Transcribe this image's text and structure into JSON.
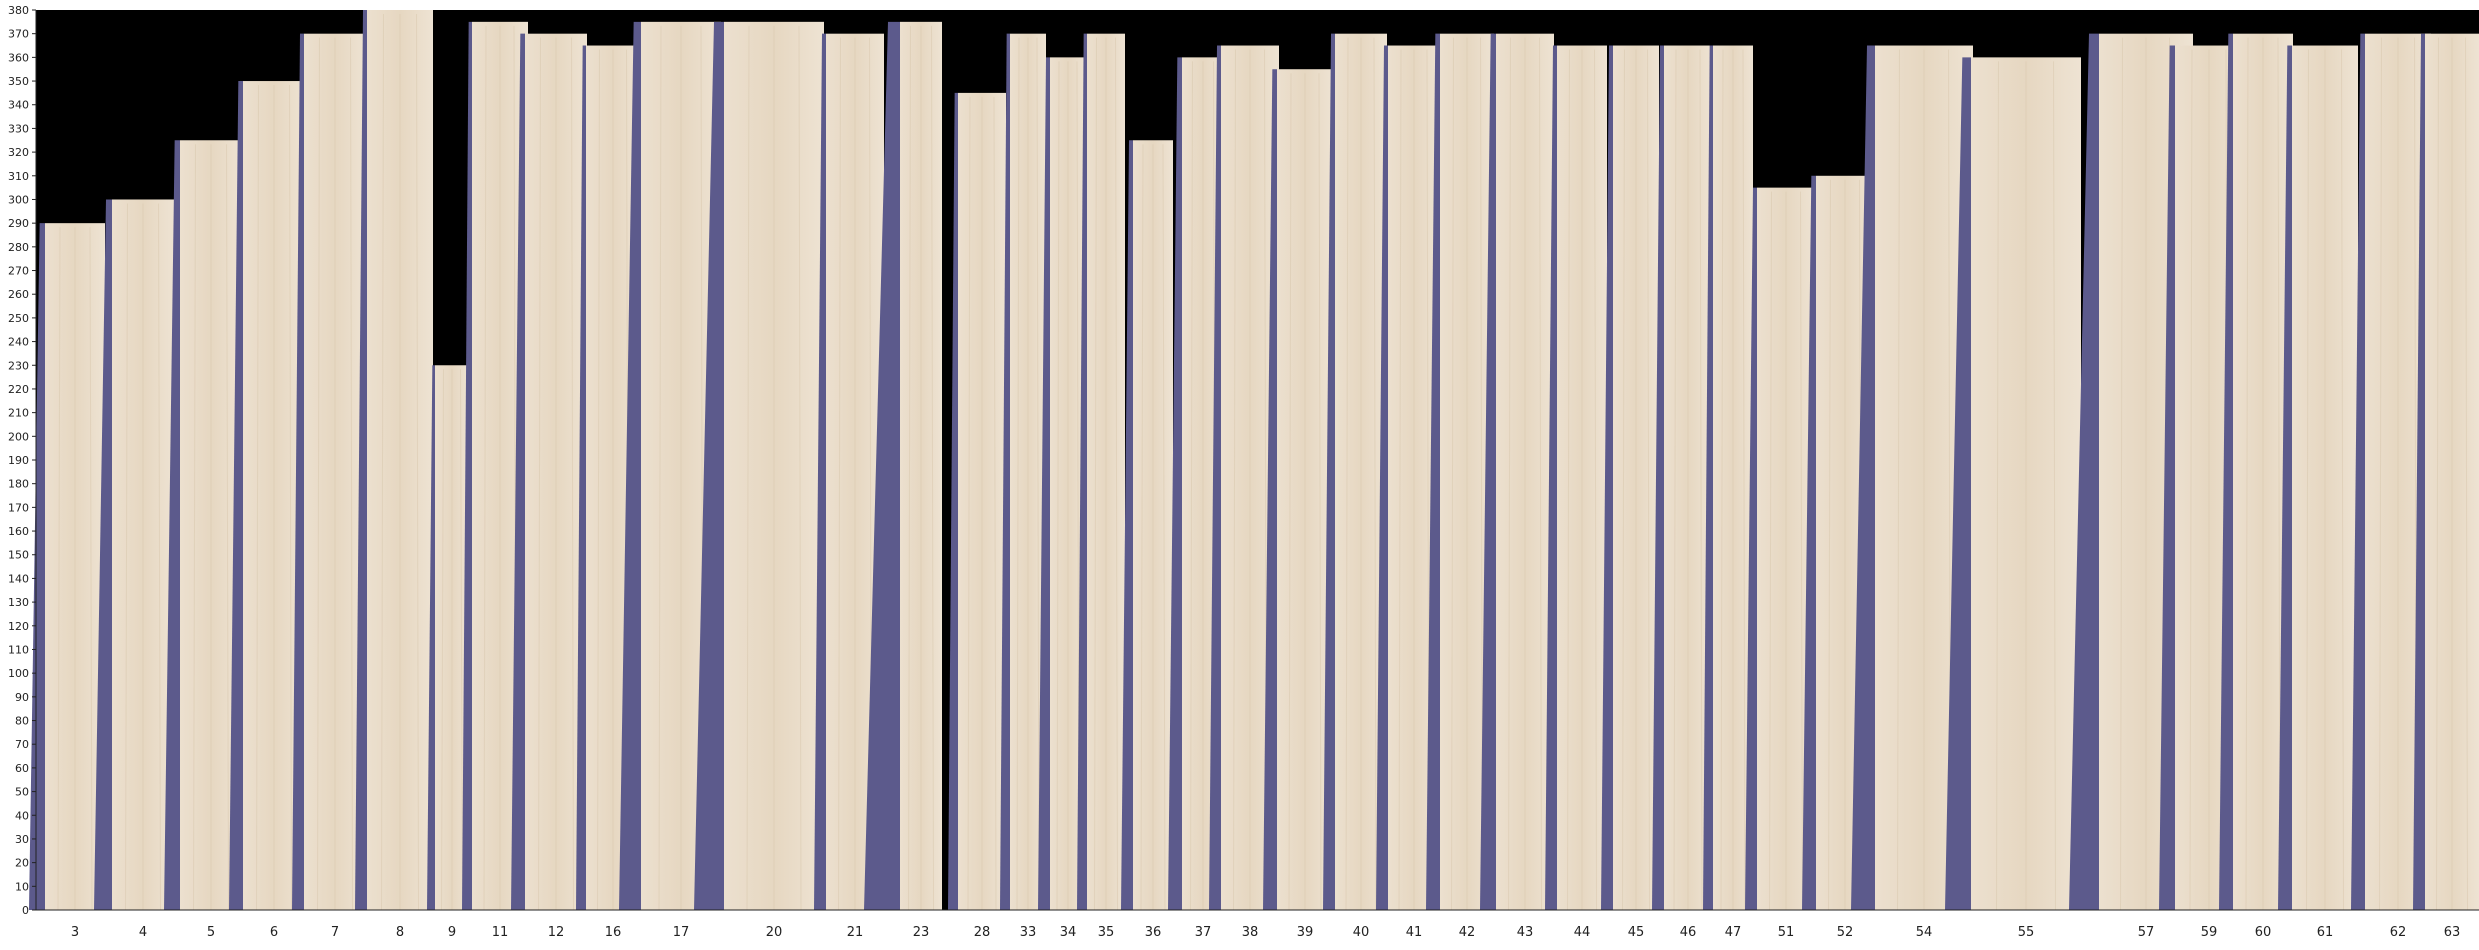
{
  "chart_data": {
    "type": "bar",
    "title": "",
    "xlabel": "",
    "ylabel": "",
    "ylim": [
      0,
      380
    ],
    "y_tick_step": 10,
    "grid": false,
    "legend": "none",
    "colors": {
      "background": "#000000",
      "board": "#e9dccb",
      "board_grain": "#d9c8ae",
      "board_edge": "#5c5a8c",
      "axis": "#222222"
    },
    "categories": [
      "3",
      "4",
      "5",
      "6",
      "7",
      "8",
      "9",
      "11",
      "12",
      "16",
      "17",
      "20",
      "21",
      "23",
      "28",
      "33",
      "34",
      "35",
      "36",
      "37",
      "38",
      "39",
      "40",
      "41",
      "42",
      "43",
      "44",
      "45",
      "46",
      "47",
      "51",
      "52",
      "54",
      "55",
      "57",
      "59",
      "60",
      "61",
      "62",
      "63"
    ],
    "values": [
      290,
      300,
      325,
      350,
      370,
      380,
      230,
      375,
      370,
      365,
      375,
      375,
      370,
      375,
      345,
      370,
      360,
      370,
      325,
      360,
      365,
      355,
      370,
      365,
      370,
      370,
      365,
      365,
      365,
      365,
      305,
      310,
      365,
      360,
      370,
      365,
      370,
      365,
      370,
      370
    ]
  }
}
